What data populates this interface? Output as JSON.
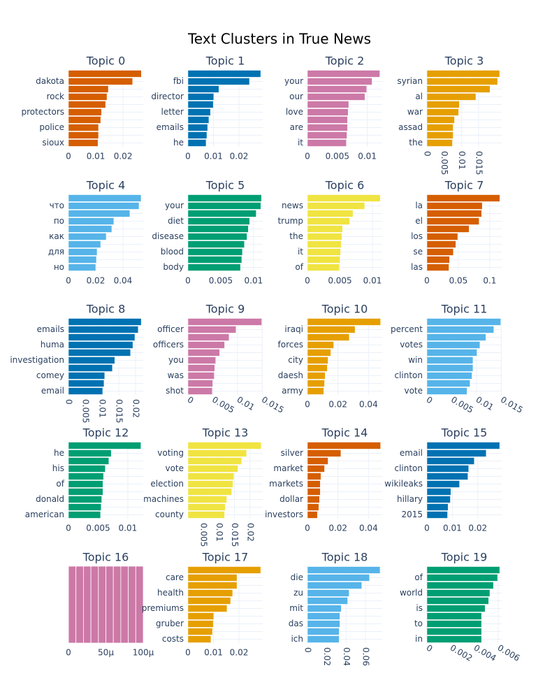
{
  "title": "Text Clusters in True News",
  "chart_data": [
    {
      "type": "bar",
      "title": "Topic 0",
      "color": "#d55e00",
      "grid": true,
      "categories": [
        null,
        "dakota",
        null,
        "rock",
        null,
        "protectors",
        null,
        "police",
        null,
        "sioux"
      ],
      "values": [
        0.0267,
        0.0235,
        0.0146,
        0.0141,
        0.0136,
        0.0121,
        0.0118,
        0.011,
        0.011,
        0.0108
      ],
      "xlim": [
        0,
        0.0274
      ],
      "xticks": [
        0,
        0.01,
        0.02
      ]
    },
    {
      "type": "bar",
      "title": "Topic 1",
      "color": "#0072b2",
      "grid": true,
      "categories": [
        null,
        "fbi",
        null,
        "director",
        null,
        "letter",
        null,
        "emails",
        null,
        "he"
      ],
      "values": [
        0.0285,
        0.0241,
        0.0121,
        0.0101,
        0.0099,
        0.0088,
        0.0082,
        0.0077,
        0.0074,
        0.0071
      ],
      "xlim": [
        0,
        0.0293
      ],
      "xticks": [
        0,
        0.01,
        0.02
      ]
    },
    {
      "type": "bar",
      "title": "Topic 2",
      "color": "#cc79a7",
      "grid": true,
      "categories": [
        null,
        "your",
        null,
        "our",
        null,
        "love",
        null,
        "are",
        null,
        "it"
      ],
      "values": [
        0.0121,
        0.0108,
        0.0099,
        0.0096,
        0.0069,
        0.0068,
        0.0067,
        0.0067,
        0.0066,
        0.0065
      ],
      "xlim": [
        0,
        0.0125
      ],
      "xticks": [
        0,
        0.005,
        0.01
      ]
    },
    {
      "type": "bar",
      "title": "Topic 3",
      "color": "#e69f00",
      "grid": true,
      "categories": [
        null,
        "syrian",
        null,
        "al",
        null,
        "war",
        null,
        "assad",
        null,
        "the"
      ],
      "values": [
        0.0211,
        0.0205,
        0.0183,
        0.0142,
        0.0094,
        0.0092,
        0.008,
        0.0076,
        0.0076,
        0.0074
      ],
      "xlim": [
        0,
        0.0217
      ],
      "xticks": [
        0,
        0.005,
        0.01,
        0.015
      ],
      "xtick_angle": 90
    },
    {
      "type": "bar",
      "title": "Topic 4",
      "color": "#56b4e9",
      "grid": true,
      "categories": [
        null,
        "что",
        null,
        "по",
        null,
        "как",
        null,
        "для",
        null,
        "но"
      ],
      "values": [
        0.0533,
        0.0518,
        0.0451,
        0.0333,
        0.0318,
        0.0277,
        0.0236,
        0.021,
        0.0205,
        0.02
      ],
      "xlim": [
        0,
        0.0549
      ],
      "xticks": [
        0,
        0.02,
        0.04
      ]
    },
    {
      "type": "bar",
      "title": "Topic 5",
      "color": "#009e73",
      "grid": true,
      "categories": [
        null,
        "your",
        null,
        "diet",
        null,
        "disease",
        null,
        "blood",
        null,
        "body"
      ],
      "values": [
        0.0112,
        0.0111,
        0.0104,
        0.0094,
        0.0092,
        0.009,
        0.0086,
        0.0083,
        0.0082,
        0.008
      ],
      "xlim": [
        0,
        0.0114
      ],
      "xticks": [
        0,
        0.005,
        0.01
      ]
    },
    {
      "type": "bar",
      "title": "Topic 6",
      "color": "#f0e442",
      "grid": true,
      "categories": [
        null,
        "news",
        null,
        "trump",
        null,
        "the",
        null,
        "it",
        null,
        "of"
      ],
      "values": [
        0.0112,
        0.0088,
        0.007,
        0.0065,
        0.0054,
        0.0053,
        0.0052,
        0.0051,
        0.005,
        0.0049
      ],
      "xlim": [
        0,
        0.0115
      ],
      "xticks": [
        0,
        0.005,
        0.01
      ]
    },
    {
      "type": "bar",
      "title": "Topic 7",
      "color": "#d55e00",
      "grid": true,
      "categories": [
        null,
        "la",
        null,
        "el",
        null,
        "los",
        null,
        "se",
        null,
        "las"
      ],
      "values": [
        0.116,
        0.088,
        0.087,
        0.083,
        0.067,
        0.049,
        0.046,
        0.042,
        0.036,
        0.035
      ],
      "xlim": [
        0,
        0.119
      ],
      "xticks": [
        0,
        0.05,
        0.1
      ]
    },
    {
      "type": "bar",
      "title": "Topic 8",
      "color": "#0072b2",
      "grid": true,
      "categories": [
        null,
        "emails",
        null,
        "huma",
        null,
        "investigation",
        null,
        "comey",
        null,
        "email"
      ],
      "values": [
        0.0217,
        0.0208,
        0.0198,
        0.0192,
        0.0185,
        0.0138,
        0.0131,
        0.0108,
        0.0106,
        0.0102
      ],
      "xlim": [
        0,
        0.0223
      ],
      "xticks": [
        0,
        0.005,
        0.01,
        0.015,
        0.02
      ],
      "xtick_angle": 90
    },
    {
      "type": "bar",
      "title": "Topic 9",
      "color": "#cc79a7",
      "grid": true,
      "categories": [
        null,
        "officer",
        null,
        "officers",
        null,
        "you",
        null,
        "was",
        null,
        "shot"
      ],
      "values": [
        0.0149,
        0.0097,
        0.0083,
        0.0074,
        0.0064,
        0.0056,
        0.0054,
        0.0053,
        0.005,
        0.0049
      ],
      "xlim": [
        0,
        0.0151
      ],
      "xticks": [
        0,
        0.005,
        0.01,
        0.015
      ],
      "xtick_angle": 30
    },
    {
      "type": "bar",
      "title": "Topic 10",
      "color": "#e69f00",
      "grid": true,
      "categories": [
        null,
        "iraqi",
        null,
        "forces",
        null,
        "city",
        null,
        "daesh",
        null,
        "army"
      ],
      "values": [
        0.0479,
        0.0312,
        0.0274,
        0.0172,
        0.0153,
        0.0135,
        0.013,
        0.0116,
        0.0112,
        0.0107
      ],
      "xlim": [
        0,
        0.049
      ],
      "xticks": [
        0,
        0.02,
        0.04
      ]
    },
    {
      "type": "bar",
      "title": "Topic 11",
      "color": "#56b4e9",
      "grid": true,
      "categories": [
        null,
        "percent",
        null,
        "votes",
        null,
        "win",
        null,
        "clinton",
        null,
        "vote"
      ],
      "values": [
        0.0149,
        0.0135,
        0.0119,
        0.0107,
        0.0101,
        0.0093,
        0.0093,
        0.0091,
        0.0087,
        0.0081
      ],
      "xlim": [
        0,
        0.0151
      ],
      "xticks": [
        0,
        0.005,
        0.01,
        0.015
      ],
      "xtick_angle": 30
    },
    {
      "type": "bar",
      "title": "Topic 12",
      "color": "#009e73",
      "grid": true,
      "categories": [
        null,
        "he",
        null,
        "his",
        null,
        "of",
        null,
        "donald",
        null,
        "american"
      ],
      "values": [
        0.0122,
        0.0072,
        0.0068,
        0.0062,
        0.0059,
        0.0058,
        0.0058,
        0.0056,
        0.0055,
        0.0054
      ],
      "xlim": [
        0,
        0.0126
      ],
      "xticks": [
        0,
        0.005,
        0.01
      ]
    },
    {
      "type": "bar",
      "title": "Topic 13",
      "color": "#f0e442",
      "grid": true,
      "categories": [
        null,
        "voting",
        null,
        "vote",
        null,
        "election",
        null,
        "machines",
        null,
        "county"
      ],
      "values": [
        0.0236,
        0.0189,
        0.0173,
        0.0161,
        0.0148,
        0.0145,
        0.0141,
        0.0125,
        0.012,
        0.0118
      ],
      "xlim": [
        0,
        0.0241
      ],
      "xticks": [
        0.005,
        0.01,
        0.015,
        0.02
      ],
      "xtick_angle": 90
    },
    {
      "type": "bar",
      "title": "Topic 14",
      "color": "#d55e00",
      "grid": true,
      "categories": [
        null,
        "silver",
        null,
        "market",
        null,
        "markets",
        null,
        "dollar",
        null,
        "investors"
      ],
      "values": [
        0.0479,
        0.0219,
        0.0135,
        0.0112,
        0.0088,
        0.0084,
        0.0084,
        0.0079,
        0.0074,
        0.0065
      ],
      "xlim": [
        0,
        0.049
      ],
      "xticks": [
        0,
        0.02,
        0.04
      ]
    },
    {
      "type": "bar",
      "title": "Topic 15",
      "color": "#0072b2",
      "grid": true,
      "categories": [
        null,
        "email",
        null,
        "clinton",
        null,
        "wikileaks",
        null,
        "hillary",
        null,
        "2015"
      ],
      "values": [
        0.0286,
        0.0233,
        0.0186,
        0.0164,
        0.0161,
        0.0128,
        0.0094,
        0.0092,
        0.0083,
        0.0081
      ],
      "xlim": [
        0,
        0.0294
      ],
      "xticks": [
        0,
        0.01,
        0.02
      ]
    },
    {
      "type": "bar",
      "title": "Topic 16",
      "color": "#cc79a7",
      "grid": true,
      "stacked": true,
      "categories": [
        null,
        null,
        null,
        null,
        null,
        null,
        null,
        null,
        null,
        null
      ],
      "values": [
        1e-05,
        1e-05,
        1e-05,
        1e-05,
        1e-05,
        1e-05,
        1e-05,
        1e-05,
        1e-05,
        1e-05
      ],
      "xlim": [
        0,
        0.0001
      ],
      "xticks": [
        0,
        {
          "value": 5e-05,
          "label": "50μ"
        },
        {
          "value": 0.0001,
          "label": "100μ"
        }
      ]
    },
    {
      "type": "bar",
      "title": "Topic 17",
      "color": "#e69f00",
      "grid": true,
      "categories": [
        null,
        "care",
        null,
        "health",
        null,
        "premiums",
        null,
        "gruber",
        null,
        "costs"
      ],
      "values": [
        0.0285,
        0.0192,
        0.0192,
        0.0175,
        0.0167,
        0.0153,
        0.0101,
        0.0099,
        0.0096,
        0.009
      ],
      "xlim": [
        0,
        0.0293
      ],
      "xticks": [
        0,
        0.01,
        0.02
      ]
    },
    {
      "type": "bar",
      "title": "Topic 18",
      "color": "#56b4e9",
      "grid": true,
      "categories": [
        null,
        "die",
        null,
        "zu",
        null,
        "mit",
        null,
        "das",
        null,
        "ich"
      ],
      "values": [
        0.0752,
        0.0642,
        0.0562,
        0.0431,
        0.0416,
        0.035,
        0.0336,
        0.0336,
        0.0328,
        0.0328
      ],
      "xlim": [
        0,
        0.0774
      ],
      "xticks": [
        0,
        0.02,
        0.04,
        0.06
      ],
      "xtick_angle": 90
    },
    {
      "type": "bar",
      "title": "Topic 19",
      "color": "#009e73",
      "grid": true,
      "categories": [
        null,
        "of",
        null,
        "world",
        null,
        "is",
        null,
        "to",
        null,
        "in"
      ],
      "values": [
        0.00613,
        0.00595,
        0.0056,
        0.0053,
        0.0052,
        0.0049,
        0.0046,
        0.0046,
        0.0046,
        0.0046
      ],
      "xlim": [
        0,
        0.0063
      ],
      "xticks": [
        0,
        0.002,
        0.004,
        0.006
      ],
      "xtick_angle": 30
    }
  ]
}
